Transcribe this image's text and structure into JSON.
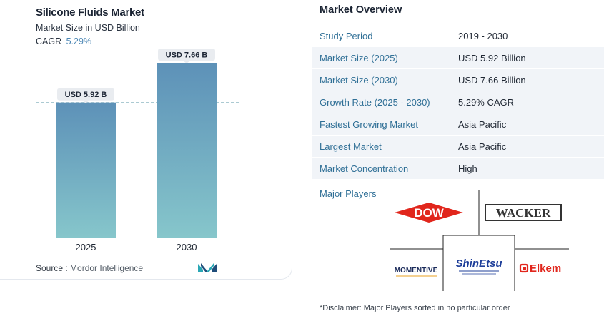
{
  "chart_card": {
    "title": "Silicone Fluids Market",
    "subtitle": "Market Size in USD Billion",
    "cagr_label": "CAGR",
    "cagr_value": "5.29%",
    "source_label": "Source :",
    "source_value": "Mordor Intelligence",
    "logo_icon": "mordor-intelligence-logo"
  },
  "chart_data": {
    "type": "bar",
    "categories": [
      "2025",
      "2030"
    ],
    "values": [
      5.92,
      7.66
    ],
    "data_labels": [
      "USD 5.92 B",
      "USD 7.66 B"
    ],
    "title": "Silicone Fluids Market",
    "subtitle": "Market Size in USD Billion",
    "xlabel": "",
    "ylabel": "",
    "ylim": [
      0,
      8.6
    ],
    "grid": false,
    "reference_line": 5.92,
    "colors": {
      "bar_top": "#5d91b8",
      "bar_bottom": "#86c6cb",
      "reference_line": "#8fb8c4",
      "label_bg": "#e9ecf0"
    }
  },
  "overview": {
    "title": "Market Overview",
    "rows": [
      {
        "key": "Study Period",
        "value": "2019 - 2030"
      },
      {
        "key": "Market Size (2025)",
        "value": "USD 5.92 Billion"
      },
      {
        "key": "Market Size (2030)",
        "value": "USD 7.66 Billion"
      },
      {
        "key": "Growth Rate (2025 - 2030)",
        "value": "5.29% CAGR"
      },
      {
        "key": "Fastest Growing Market",
        "value": "Asia Pacific"
      },
      {
        "key": "Largest Market",
        "value": "Asia Pacific"
      },
      {
        "key": "Market Concentration",
        "value": "High"
      }
    ]
  },
  "major_players": {
    "label": "Major Players",
    "logos": [
      {
        "name": "DOW",
        "text": "DOW",
        "color": "#e1261c"
      },
      {
        "name": "WACKER",
        "text": "WACKER",
        "color": "#333333"
      },
      {
        "name": "MOMENTIVE",
        "text": "MOMENTIVE",
        "color": "#1a2a5a"
      },
      {
        "name": "Shin-Etsu",
        "text": "ShinEtsu",
        "color": "#1f3f9a"
      },
      {
        "name": "Elkem",
        "text": "Elkem",
        "color": "#e1261c"
      }
    ]
  },
  "disclaimer": "*Disclaimer: Major Players sorted in no particular order"
}
